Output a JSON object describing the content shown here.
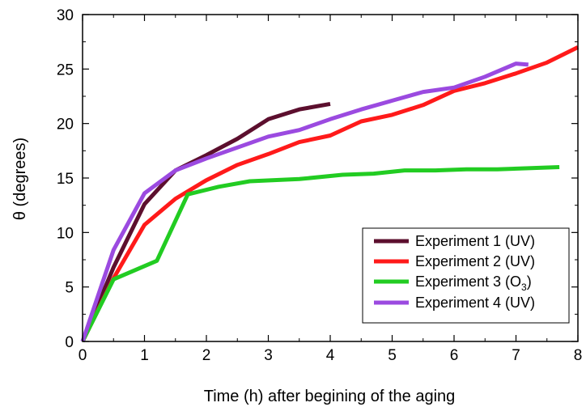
{
  "chart_data": {
    "type": "line",
    "xlabel": "Time (h) after begining of the aging",
    "ylabel": "θ (degrees)",
    "xlim": [
      0,
      8
    ],
    "ylim": [
      0,
      30
    ],
    "xticks": [
      "0",
      "1",
      "2",
      "3",
      "4",
      "5",
      "6",
      "7",
      "8"
    ],
    "yticks": [
      "0",
      "5",
      "10",
      "15",
      "20",
      "25",
      "30"
    ],
    "grid": false,
    "legend_position": "bottom-right",
    "series": [
      {
        "name": "Experiment 1 (UV)",
        "color": "#5c0f2e",
        "x": [
          0,
          0.5,
          1,
          1.5,
          2,
          2.5,
          3,
          3.5,
          4
        ],
        "y": [
          0,
          6.8,
          12.6,
          15.7,
          17.1,
          18.6,
          20.4,
          21.3,
          21.8
        ]
      },
      {
        "name": "Experiment 2 (UV)",
        "color": "#ff1a1a",
        "x": [
          0,
          0.5,
          1,
          1.5,
          2,
          2.5,
          3,
          3.5,
          4,
          4.5,
          5,
          5.5,
          6,
          6.5,
          7,
          7.5,
          8
        ],
        "y": [
          0,
          5.8,
          10.7,
          13.1,
          14.8,
          16.2,
          17.2,
          18.3,
          18.9,
          20.2,
          20.8,
          21.7,
          23.0,
          23.7,
          24.6,
          25.6,
          27.0
        ]
      },
      {
        "name": "Experiment 3 (O₃)",
        "color": "#22cc22",
        "x": [
          0,
          0.5,
          1.2,
          1.7,
          2.2,
          2.7,
          3.5,
          4.2,
          4.7,
          5.2,
          5.7,
          6.2,
          6.7,
          7.2,
          7.7
        ],
        "y": [
          0,
          5.7,
          7.4,
          13.5,
          14.2,
          14.7,
          14.9,
          15.3,
          15.4,
          15.7,
          15.7,
          15.8,
          15.8,
          15.9,
          16.0
        ]
      },
      {
        "name": "Experiment 4 (UV)",
        "color": "#9b4ae0",
        "x": [
          0,
          0.5,
          1,
          1.5,
          2,
          2.5,
          3,
          3.5,
          4,
          4.5,
          5,
          5.5,
          6,
          6.5,
          7,
          7.2
        ],
        "y": [
          0,
          8.4,
          13.6,
          15.7,
          16.8,
          17.8,
          18.8,
          19.4,
          20.4,
          21.3,
          22.1,
          22.9,
          23.3,
          24.3,
          25.5,
          25.4
        ]
      }
    ],
    "legend": [
      {
        "text": "Experiment 1 (UV)"
      },
      {
        "text": "Experiment 2 (UV)"
      },
      {
        "text_before": "Experiment 3 (O",
        "sub": "3",
        "text_after": ")"
      },
      {
        "text": "Experiment 4 (UV)"
      }
    ]
  }
}
